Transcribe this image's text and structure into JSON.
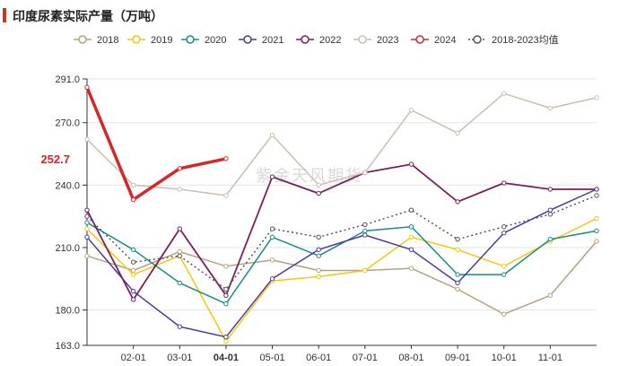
{
  "title": "印度尿素实际产量（万吨）",
  "chart_data": {
    "type": "line",
    "title": "印度尿素实际产量（万吨）",
    "xlabel": "",
    "ylabel": "",
    "ylim": [
      163.0,
      291.0
    ],
    "y_ticks": [
      "291.0",
      "270.0",
      "240.0",
      "210.0",
      "180.0",
      "163.0"
    ],
    "y_tick_values": [
      291,
      270,
      240,
      210,
      180,
      163
    ],
    "x_tick_labels": [
      "02-01",
      "03-01",
      "04-01",
      "05-01",
      "06-01",
      "07-01",
      "08-01",
      "09-01",
      "10-01",
      "11-01"
    ],
    "highlight_tick": "04-01",
    "highlight_color": "#e02020",
    "x_positions": [
      "01-01",
      "02-01",
      "03-01",
      "04-01",
      "05-01",
      "06-01",
      "07-01",
      "08-01",
      "09-01",
      "10-01",
      "11-01",
      "12-01"
    ],
    "annotation": {
      "label": "252.7",
      "value": 252.7
    },
    "watermark": "紫金天风期货",
    "series": [
      {
        "name": "2018",
        "color": "#b5a37c",
        "dashed": false,
        "width": 1.5,
        "values": [
          206,
          199,
          208,
          201,
          204,
          199,
          199,
          200,
          190,
          178,
          187,
          213
        ]
      },
      {
        "name": "2019",
        "color": "#f2c811",
        "dashed": false,
        "width": 1.5,
        "values": [
          219,
          197,
          206,
          165,
          194,
          196,
          199,
          215,
          209,
          201,
          213,
          224
        ]
      },
      {
        "name": "2020",
        "color": "#1a8a8a",
        "dashed": false,
        "width": 1.5,
        "values": [
          222,
          209,
          193,
          183,
          215,
          206,
          218,
          220,
          197,
          197,
          214,
          218
        ]
      },
      {
        "name": "2021",
        "color": "#4b3a9c",
        "dashed": false,
        "width": 1.5,
        "values": [
          215,
          189,
          172,
          167,
          195,
          209,
          216,
          209,
          193,
          217,
          228,
          238
        ]
      },
      {
        "name": "2022",
        "color": "#7a1f5c",
        "dashed": false,
        "width": 1.8,
        "values": [
          228,
          185,
          219,
          187,
          244,
          236,
          246,
          250,
          232,
          241,
          238,
          238
        ]
      },
      {
        "name": "2023",
        "color": "#c9bfb0",
        "dashed": false,
        "width": 1.5,
        "values": [
          262,
          240,
          238,
          235,
          264,
          240,
          246,
          276,
          265,
          284,
          277,
          282
        ]
      },
      {
        "name": "2024",
        "color": "#d62728",
        "dashed": false,
        "width": 3.5,
        "values": [
          287,
          233,
          248,
          252.7,
          null,
          null,
          null,
          null,
          null,
          null,
          null,
          null
        ]
      },
      {
        "name": "2018-2023均值",
        "color": "#555555",
        "dashed": true,
        "width": 1.5,
        "values": [
          225,
          203,
          206,
          190,
          219,
          215,
          221,
          228,
          214,
          220,
          226,
          235
        ]
      }
    ]
  }
}
